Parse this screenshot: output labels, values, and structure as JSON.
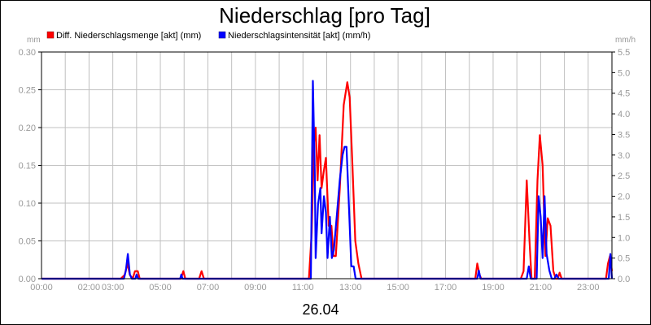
{
  "chart": {
    "title": "Niederschlag [pro Tag]",
    "date_label": "26.04",
    "y_left_unit": "mm",
    "y_right_unit": "mm/h"
  },
  "chart_data": {
    "type": "line",
    "title": "Niederschlag [pro Tag]",
    "xlabel": "26.04",
    "x_ticks": [
      "00:00",
      "02:00",
      "03:00",
      "05:00",
      "07:00",
      "09:00",
      "11:00",
      "13:00",
      "15:00",
      "17:00",
      "19:00",
      "21:00",
      "23:00"
    ],
    "x_range": [
      "00:00",
      "24:00"
    ],
    "y_left": {
      "unit": "mm",
      "ylim": [
        0,
        0.3
      ],
      "ticks": [
        "0.00",
        "0.05",
        "0.10",
        "0.15",
        "0.20",
        "0.25",
        "0.30"
      ]
    },
    "y_right": {
      "unit": "mm/h",
      "ylim": [
        0,
        5.5
      ],
      "ticks": [
        "0.0",
        "0.5",
        "1.0",
        "1.5",
        "2.0",
        "2.5",
        "3.0",
        "3.5",
        "4.0",
        "4.5",
        "5.0",
        "5.5"
      ]
    },
    "grid": true,
    "legend_position": "top-left",
    "series": [
      {
        "name": "Diff. Niederschlagsmenge [akt] (mm)",
        "axis": "left",
        "color": "#ff0000",
        "points": [
          [
            "00:00",
            0
          ],
          [
            "03:20",
            0
          ],
          [
            "03:30",
            0.005
          ],
          [
            "03:37",
            0.02
          ],
          [
            "03:43",
            0.005
          ],
          [
            "03:50",
            0
          ],
          [
            "03:56",
            0.01
          ],
          [
            "04:03",
            0.01
          ],
          [
            "04:08",
            0
          ],
          [
            "05:52",
            0
          ],
          [
            "05:58",
            0.01
          ],
          [
            "06:03",
            0
          ],
          [
            "06:38",
            0
          ],
          [
            "06:44",
            0.01
          ],
          [
            "06:50",
            0
          ],
          [
            "11:15",
            0
          ],
          [
            "11:22",
            0.06
          ],
          [
            "11:28",
            0.18
          ],
          [
            "11:32",
            0.2
          ],
          [
            "11:37",
            0.13
          ],
          [
            "11:42",
            0.19
          ],
          [
            "11:47",
            0.12
          ],
          [
            "11:52",
            0.14
          ],
          [
            "11:58",
            0.16
          ],
          [
            "12:05",
            0.07
          ],
          [
            "12:12",
            0.07
          ],
          [
            "12:17",
            0.03
          ],
          [
            "12:23",
            0.03
          ],
          [
            "12:33",
            0.12
          ],
          [
            "12:43",
            0.23
          ],
          [
            "12:52",
            0.26
          ],
          [
            "12:58",
            0.24
          ],
          [
            "13:05",
            0.15
          ],
          [
            "13:12",
            0.05
          ],
          [
            "13:20",
            0.02
          ],
          [
            "13:28",
            0
          ],
          [
            "18:15",
            0
          ],
          [
            "18:20",
            0.02
          ],
          [
            "18:26",
            0.005
          ],
          [
            "18:30",
            0
          ],
          [
            "20:10",
            0
          ],
          [
            "20:17",
            0.01
          ],
          [
            "20:25",
            0.13
          ],
          [
            "20:32",
            0.05
          ],
          [
            "20:37",
            0
          ],
          [
            "20:45",
            0
          ],
          [
            "20:52",
            0.13
          ],
          [
            "20:58",
            0.19
          ],
          [
            "21:05",
            0.15
          ],
          [
            "21:12",
            0.03
          ],
          [
            "21:18",
            0.08
          ],
          [
            "21:25",
            0.07
          ],
          [
            "21:32",
            0.01
          ],
          [
            "21:38",
            0
          ],
          [
            "21:43",
            0
          ],
          [
            "21:48",
            0.008
          ],
          [
            "21:53",
            0
          ],
          [
            "23:45",
            0
          ],
          [
            "23:50",
            0.02
          ],
          [
            "23:55",
            0.03
          ],
          [
            "24:00",
            0.01
          ]
        ]
      },
      {
        "name": "Niederschlagsintensität [akt] (mm/h)",
        "axis": "right",
        "color": "#0000ff",
        "points": [
          [
            "00:00",
            0
          ],
          [
            "03:28",
            0
          ],
          [
            "03:33",
            0.2
          ],
          [
            "03:38",
            0.6
          ],
          [
            "03:43",
            0.1
          ],
          [
            "03:48",
            0
          ],
          [
            "03:57",
            0
          ],
          [
            "04:00",
            0.1
          ],
          [
            "04:04",
            0
          ],
          [
            "05:50",
            0
          ],
          [
            "05:53",
            0.1
          ],
          [
            "05:56",
            0
          ],
          [
            "11:20",
            0
          ],
          [
            "11:25",
            4.8
          ],
          [
            "11:30",
            2.5
          ],
          [
            "11:32",
            0.5
          ],
          [
            "11:38",
            1.8
          ],
          [
            "11:44",
            2.2
          ],
          [
            "11:47",
            1.1
          ],
          [
            "11:53",
            2.0
          ],
          [
            "11:58",
            1.6
          ],
          [
            "12:02",
            0.5
          ],
          [
            "12:08",
            1.5
          ],
          [
            "12:13",
            0.5
          ],
          [
            "12:18",
            0.7
          ],
          [
            "12:26",
            1.6
          ],
          [
            "12:33",
            2.4
          ],
          [
            "12:40",
            3.0
          ],
          [
            "12:45",
            3.2
          ],
          [
            "12:50",
            3.2
          ],
          [
            "12:55",
            2.0
          ],
          [
            "13:02",
            0.3
          ],
          [
            "13:08",
            0.3
          ],
          [
            "13:13",
            0
          ],
          [
            "18:20",
            0
          ],
          [
            "18:24",
            0.2
          ],
          [
            "18:28",
            0
          ],
          [
            "20:25",
            0
          ],
          [
            "20:30",
            0.3
          ],
          [
            "20:35",
            0
          ],
          [
            "20:50",
            0
          ],
          [
            "20:55",
            2.0
          ],
          [
            "21:00",
            1.5
          ],
          [
            "21:05",
            0.5
          ],
          [
            "21:10",
            2.0
          ],
          [
            "21:15",
            0.6
          ],
          [
            "21:22",
            0.2
          ],
          [
            "21:28",
            0
          ],
          [
            "21:35",
            0
          ],
          [
            "21:40",
            0.1
          ],
          [
            "21:45",
            0
          ],
          [
            "23:52",
            0
          ],
          [
            "23:56",
            0.6
          ],
          [
            "24:00",
            0
          ]
        ]
      }
    ]
  }
}
